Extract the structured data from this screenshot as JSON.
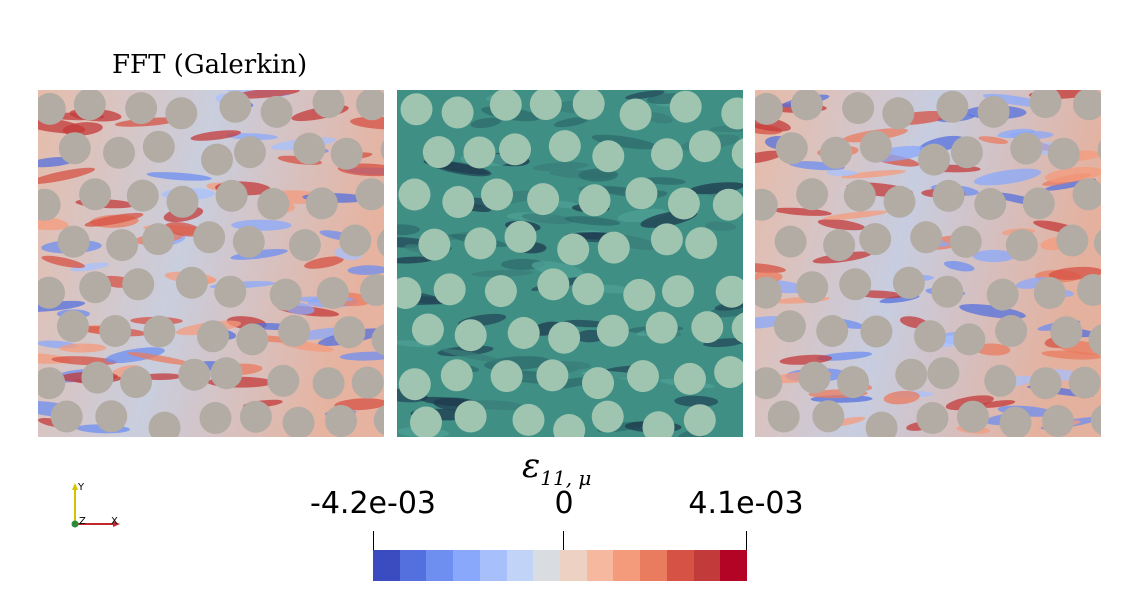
{
  "panel_title": "FFT (Galerkin)",
  "colorbar": {
    "title_symbol": "ε",
    "title_subscript": "11, μ",
    "min_label": "-4.2e-03",
    "mid_label": "0",
    "max_label": "4.1e-03",
    "colors": [
      "#3b4cc0",
      "#5470de",
      "#6e8ef0",
      "#8aa8fb",
      "#a7c0fc",
      "#c1d3f6",
      "#d9dce1",
      "#edd1c2",
      "#f6b9a0",
      "#f49b7c",
      "#e97b5f",
      "#d65244",
      "#c33a3a",
      "#b40426"
    ]
  },
  "axes_triad": {
    "x_label": "X",
    "y_label": "Y",
    "z_label": "Z"
  },
  "panels": [
    {
      "name": "left",
      "field": "strain-coolwarm",
      "inclusion_color": "#b2aca4"
    },
    {
      "name": "middle",
      "field": "material-phase",
      "matrix_color": "#3f8f85",
      "inclusion_color": "#9fc5b0"
    },
    {
      "name": "right",
      "field": "strain-coolwarm",
      "inclusion_color": "#b2aca4"
    }
  ]
}
